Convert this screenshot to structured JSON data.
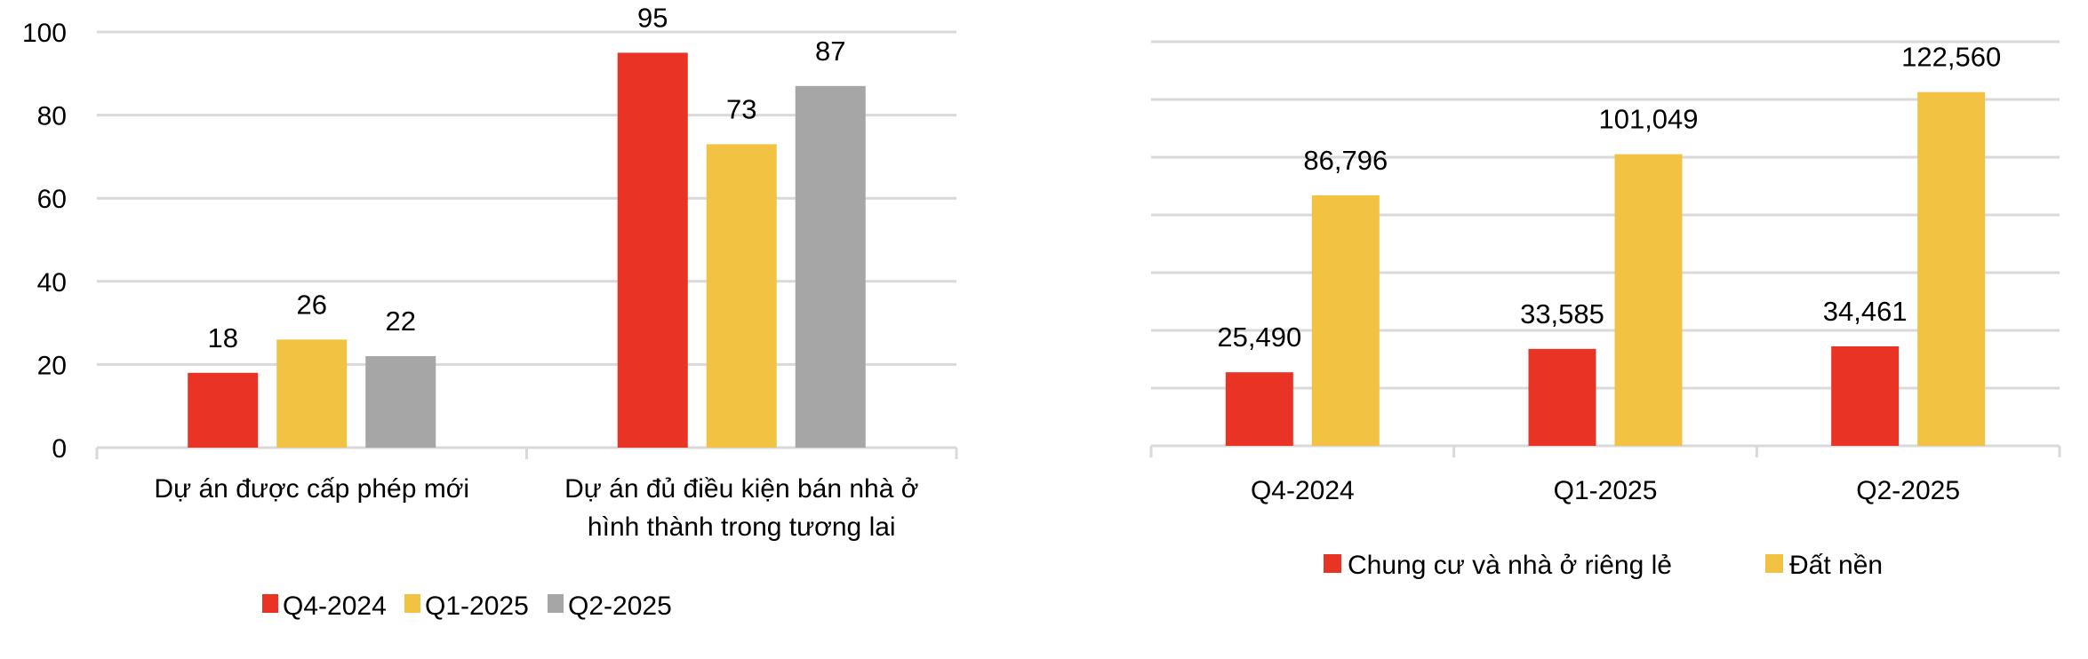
{
  "chart_data": [
    {
      "type": "bar",
      "title": "",
      "xlabel": "",
      "ylabel": "",
      "ylim": [
        0,
        100
      ],
      "yticks": [
        0,
        20,
        40,
        60,
        80,
        100
      ],
      "ytick_labels": [
        "0",
        "20",
        "40",
        "60",
        "80",
        "100"
      ],
      "grid": true,
      "legend_position": "bottom",
      "categories": [
        [
          "Dự án được cấp phép mới"
        ],
        [
          "Dự án đủ điều kiện bán nhà ở",
          "hình thành trong tương lai"
        ]
      ],
      "series": [
        {
          "name": "Q4-2024",
          "color": "#e83325",
          "values": [
            18,
            95
          ],
          "labels": [
            "18",
            "95"
          ]
        },
        {
          "name": "Q1-2025",
          "color": "#f2c343",
          "values": [
            26,
            73
          ],
          "labels": [
            "26",
            "73"
          ]
        },
        {
          "name": "Q2-2025",
          "color": "#a6a6a6",
          "values": [
            22,
            87
          ],
          "labels": [
            "22",
            "87"
          ]
        }
      ]
    },
    {
      "type": "bar",
      "title": "",
      "xlabel": "",
      "ylabel": "",
      "ylim": [
        0,
        140000
      ],
      "yticks": [
        0,
        20000,
        40000,
        60000,
        80000,
        100000,
        120000,
        140000
      ],
      "ytick_labels": [],
      "grid": true,
      "legend_position": "bottom",
      "categories": [
        [
          "Q4-2024"
        ],
        [
          "Q1-2025"
        ],
        [
          "Q2-2025"
        ]
      ],
      "series": [
        {
          "name": "Chung cư và nhà ở riêng lẻ",
          "color": "#e83325",
          "values": [
            25490,
            33585,
            34461
          ],
          "labels": [
            "25,490",
            "33,585",
            "34,461"
          ]
        },
        {
          "name": "Đất nền",
          "color": "#f2c343",
          "values": [
            86796,
            101049,
            122560
          ],
          "labels": [
            "86,796",
            "101,049",
            "122,560"
          ]
        }
      ]
    }
  ],
  "colors": {
    "gridline": "#d9d9d9",
    "text": "#000000"
  }
}
